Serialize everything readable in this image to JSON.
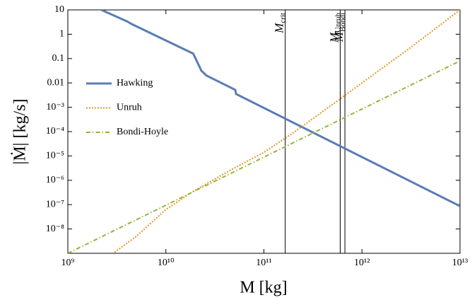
{
  "chart_data": {
    "type": "line",
    "x_label": "M  [kg]",
    "y_label": "|Ṁ|  [kg/s]",
    "xscale": "log",
    "yscale": "log",
    "xlim": [
      1000000000.0,
      10000000000000.0
    ],
    "ylim": [
      1e-09,
      10
    ],
    "xticks": [
      {
        "value": 1000000000.0,
        "label": "10⁹"
      },
      {
        "value": 10000000000.0,
        "label": "10¹⁰"
      },
      {
        "value": 100000000000.0,
        "label": "10¹¹"
      },
      {
        "value": 1000000000000.0,
        "label": "10¹²"
      },
      {
        "value": 10000000000000.0,
        "label": "10¹³"
      }
    ],
    "yticks": [
      {
        "value": 1e-08,
        "label": "10⁻⁸"
      },
      {
        "value": 1e-07,
        "label": "10⁻⁷"
      },
      {
        "value": 1e-06,
        "label": "10⁻⁶"
      },
      {
        "value": 1e-05,
        "label": "10⁻⁵"
      },
      {
        "value": 0.0001,
        "label": "10⁻⁴"
      },
      {
        "value": 0.001,
        "label": "10⁻³"
      },
      0.01,
      0.1,
      1,
      10
    ],
    "legend": "upper left",
    "series": [
      {
        "name": "Hawking",
        "color": "#5a7db4",
        "style": "solid",
        "x": [
          2200000000.0,
          4000000000.0,
          4500000000.0,
          19000000000.0,
          23000000000.0,
          26000000000.0,
          51000000000.0,
          52000000000.0,
          10000000000000.0
        ],
        "values": [
          10,
          3.4,
          2.6,
          0.16,
          0.032,
          0.02,
          0.0052,
          0.0035,
          8.7e-08
        ]
      },
      {
        "name": "Unruh",
        "color": "#e3962a",
        "style": "dotted",
        "x": [
          3000000000.0,
          5000000000.0,
          10000000000.0,
          20000000000.0,
          30000000000.0,
          50000000000.0,
          100000000000.0,
          200000000000.0,
          500000000000.0,
          1000000000000.0,
          3000000000000.0,
          10000000000000.0
        ],
        "values": [
          1.1e-09,
          5e-09,
          6.3e-08,
          4e-07,
          1e-06,
          3.2e-06,
          1.4e-05,
          9e-05,
          0.0013,
          0.01,
          0.25,
          10
        ]
      },
      {
        "name": "Bondi-Hoyle",
        "color": "#93b63a",
        "style": "dashdot",
        "x": [
          1000000000.0,
          10000000000000.0
        ],
        "values": [
          1e-09,
          0.08
        ]
      }
    ],
    "vlines": [
      {
        "x": 165000000000.0,
        "label": "M",
        "sub": "crit"
      },
      {
        "x": 600000000000.0,
        "label": "M",
        "sub": "Unruh"
      },
      {
        "x": 670000000000.0,
        "label": "M",
        "sub": "Bondi"
      }
    ]
  }
}
